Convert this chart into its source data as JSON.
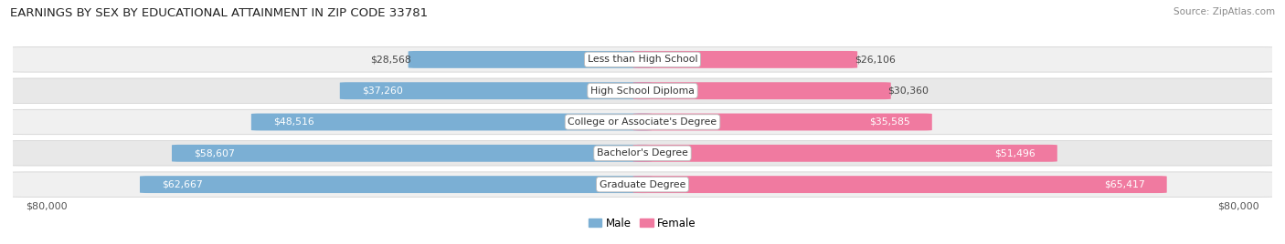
{
  "title": "EARNINGS BY SEX BY EDUCATIONAL ATTAINMENT IN ZIP CODE 33781",
  "source": "Source: ZipAtlas.com",
  "categories": [
    "Less than High School",
    "High School Diploma",
    "College or Associate's Degree",
    "Bachelor's Degree",
    "Graduate Degree"
  ],
  "male_values": [
    28568,
    37260,
    48516,
    58607,
    62667
  ],
  "female_values": [
    26106,
    30360,
    35585,
    51496,
    65417
  ],
  "male_color": "#7bafd4",
  "female_color": "#f07aa0",
  "pill_color": "#e0e0e0",
  "row_alt_colors": [
    "#f0f0f0",
    "#e8e8e8"
  ],
  "max_value": 80000,
  "title_fontsize": 9.5,
  "bar_value_fontsize": 7.8,
  "cat_label_fontsize": 7.8,
  "background_color": "#ffffff"
}
